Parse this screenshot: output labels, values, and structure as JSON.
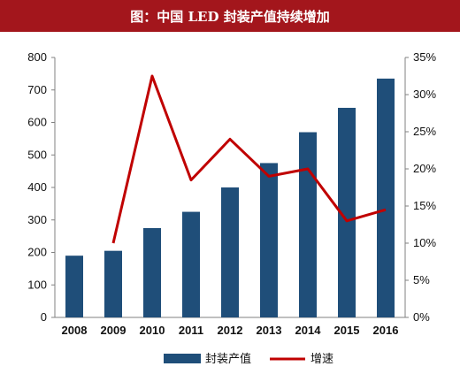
{
  "title": "图：中国 LED 封装产值持续增加",
  "colors": {
    "title_bg": "#a3161c",
    "bar": "#1f4e79",
    "line": "#c00000",
    "axis": "#808080"
  },
  "chart_data": {
    "type": "bar",
    "categories": [
      "2008",
      "2009",
      "2010",
      "2011",
      "2012",
      "2013",
      "2014",
      "2015",
      "2016"
    ],
    "series": [
      {
        "name": "封装产值",
        "type": "bar",
        "axis": "left",
        "values": [
          190,
          205,
          275,
          325,
          400,
          475,
          570,
          645,
          735
        ]
      },
      {
        "name": "增速",
        "type": "line",
        "axis": "right",
        "values": [
          null,
          0.1,
          0.325,
          0.185,
          0.24,
          0.19,
          0.2,
          0.13,
          0.145
        ]
      }
    ],
    "y_left": {
      "lim": [
        0,
        800
      ],
      "ticks": [
        "0",
        "100",
        "200",
        "300",
        "400",
        "500",
        "600",
        "700",
        "800"
      ]
    },
    "y_right": {
      "lim": [
        0,
        0.35
      ],
      "ticks": [
        "0%",
        "5%",
        "10%",
        "15%",
        "20%",
        "25%",
        "30%",
        "35%"
      ]
    },
    "legend": {
      "placement": "bottom",
      "items": [
        "封装产值",
        "增速"
      ]
    },
    "grid": false
  }
}
